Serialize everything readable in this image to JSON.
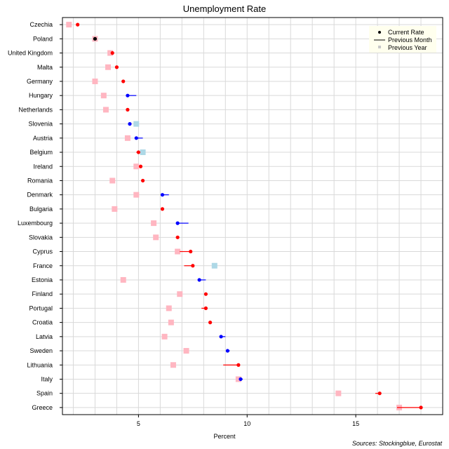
{
  "chart_data": {
    "type": "scatter",
    "title": "Unemployment Rate",
    "xlabel": "Percent",
    "source": "Sources: Stockingblue, Eurostat",
    "xlim": [
      1.5,
      19.0
    ],
    "xticks": [
      5,
      10,
      15
    ],
    "grid": true,
    "legend": {
      "placement": "top-right",
      "items": [
        {
          "label": "Current Rate",
          "marker": "dot"
        },
        {
          "label": "Previous Month",
          "marker": "line"
        },
        {
          "label": "Previous Year",
          "marker": "square"
        }
      ]
    },
    "colors": {
      "increase": "#ff0000",
      "decrease": "#0000ff",
      "unchanged": "#000000",
      "prev_year_increase": "#ffb6c1",
      "prev_year_decrease": "#add8e6"
    },
    "categories": [
      "Czechia",
      "Poland",
      "United Kingdom",
      "Malta",
      "Germany",
      "Hungary",
      "Netherlands",
      "Slovenia",
      "Austria",
      "Belgium",
      "Ireland",
      "Romania",
      "Denmark",
      "Bulgaria",
      "Luxembourg",
      "Slovakia",
      "Cyprus",
      "France",
      "Estonia",
      "Finland",
      "Portugal",
      "Croatia",
      "Latvia",
      "Sweden",
      "Lithuania",
      "Italy",
      "Spain",
      "Greece"
    ],
    "series": [
      {
        "name": "Current Rate",
        "values": [
          2.2,
          3.0,
          3.8,
          4.0,
          4.3,
          4.5,
          4.5,
          4.6,
          4.9,
          5.0,
          5.1,
          5.2,
          6.1,
          6.1,
          6.8,
          6.8,
          7.4,
          7.5,
          7.8,
          8.1,
          8.1,
          8.3,
          8.8,
          9.1,
          9.6,
          9.7,
          16.1,
          18.0
        ]
      },
      {
        "name": "Previous Month",
        "values": [
          2.2,
          3.0,
          3.8,
          4.0,
          4.3,
          4.9,
          4.5,
          4.6,
          5.2,
          4.9,
          5.1,
          5.2,
          6.4,
          6.1,
          7.3,
          6.8,
          6.9,
          7.1,
          8.1,
          8.1,
          7.9,
          8.3,
          9.0,
          9.2,
          8.9,
          9.8,
          15.9,
          16.9
        ]
      },
      {
        "name": "Previous Year",
        "values": [
          1.8,
          3.0,
          3.7,
          3.6,
          3.0,
          3.4,
          3.5,
          4.9,
          4.5,
          5.2,
          4.9,
          3.8,
          4.9,
          3.9,
          5.7,
          5.8,
          6.8,
          8.5,
          4.3,
          6.9,
          6.4,
          6.5,
          6.2,
          7.2,
          6.6,
          9.6,
          14.2,
          17.0
        ]
      }
    ]
  }
}
